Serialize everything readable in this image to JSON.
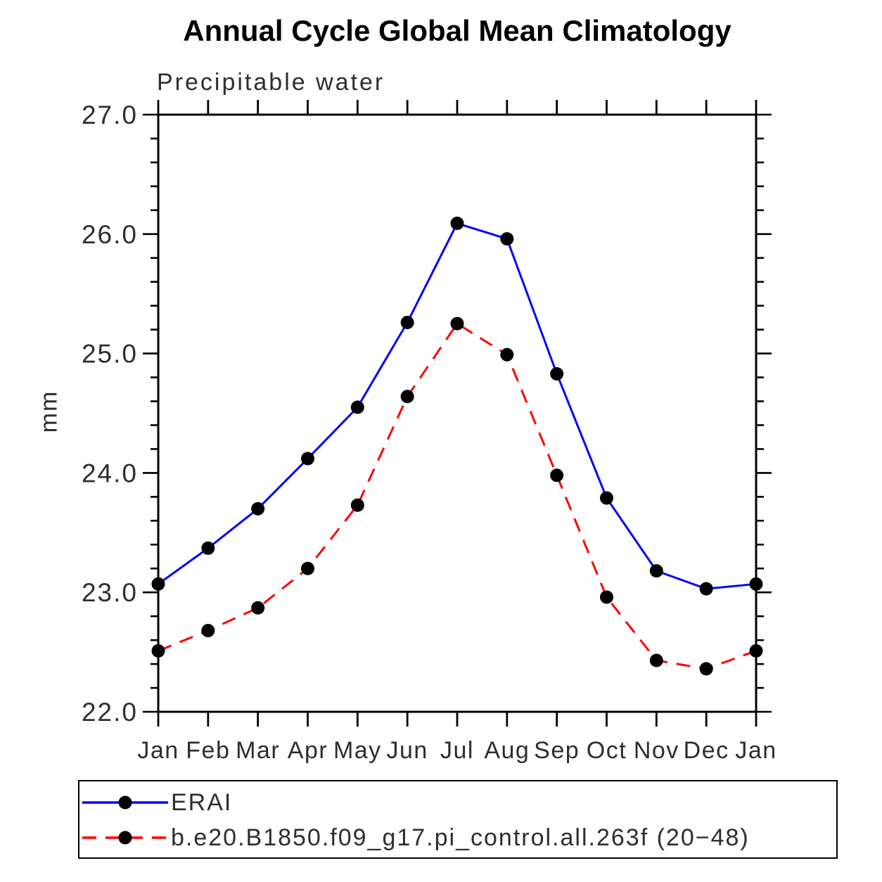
{
  "chart_data": {
    "type": "line",
    "title": "Annual Cycle Global Mean Climatology",
    "subtitle": "Precipitable water",
    "ylabel": "mm",
    "xlabel": "",
    "categories": [
      "Jan",
      "Feb",
      "Mar",
      "Apr",
      "May",
      "Jun",
      "Jul",
      "Aug",
      "Sep",
      "Oct",
      "Nov",
      "Dec",
      "Jan"
    ],
    "ylim": [
      22.0,
      27.0
    ],
    "yticks": [
      22.0,
      23.0,
      24.0,
      25.0,
      26.0,
      27.0
    ],
    "ytick_labels": [
      "22.0",
      "23.0",
      "24.0",
      "25.0",
      "26.0",
      "27.0"
    ],
    "minor_tick_interval": 0.2,
    "grid": false,
    "legend_position": "bottom",
    "axis_color": "#000000",
    "text_color": "#2e2e2e",
    "series": [
      {
        "name": "ERAI",
        "color": "#0000ff",
        "style": "solid",
        "marker": "circle",
        "marker_color": "#000000",
        "values": [
          23.07,
          23.37,
          23.7,
          24.12,
          24.55,
          25.26,
          26.09,
          25.96,
          24.83,
          23.79,
          23.18,
          23.03,
          23.07
        ]
      },
      {
        "name": "b.e20.B1850.f09_g17.pi_control.all.263f (20−48)",
        "color": "#ff0000",
        "style": "dashed",
        "marker": "circle",
        "marker_color": "#000000",
        "values": [
          22.51,
          22.68,
          22.87,
          23.2,
          23.73,
          24.64,
          25.25,
          24.99,
          23.98,
          22.96,
          22.43,
          22.36,
          22.51
        ]
      }
    ]
  }
}
